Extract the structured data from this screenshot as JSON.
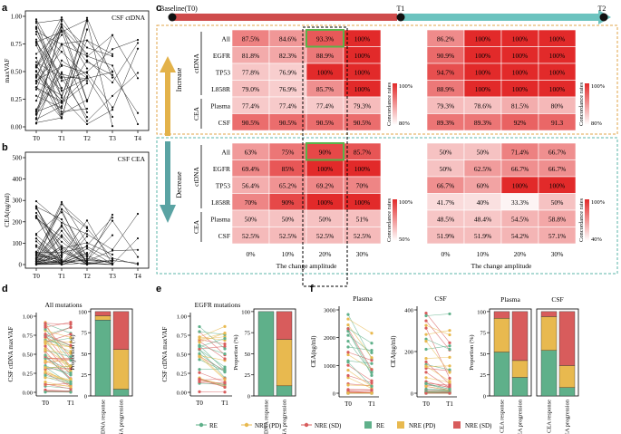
{
  "panel_letters": {
    "a": "a",
    "b": "b",
    "c": "c",
    "d": "d",
    "e": "e",
    "f": "f"
  },
  "panel_a": {
    "title": "CSF ctDNA",
    "ylabel": "maxVAF",
    "yticks": [
      "0.00",
      "0.25",
      "0.50",
      "0.75",
      "1.00"
    ],
    "xticks": [
      "T0",
      "T1",
      "T2",
      "T3",
      "T4"
    ]
  },
  "panel_b": {
    "title": "CSF CEA",
    "ylabel": "CEA(ng/ml)",
    "yticks": [
      "0",
      "100",
      "200",
      "300",
      "400",
      "500"
    ],
    "xticks": [
      "T0",
      "T1",
      "T2",
      "T3",
      "T4"
    ]
  },
  "timeline": {
    "baseline": "Baseline(T0)",
    "t1": "T1",
    "t2": "T2"
  },
  "row_labels": [
    "All",
    "EGFR",
    "TP53",
    "L858R",
    "Plasma",
    "CSF"
  ],
  "group_labels": {
    "ctdna": "ctDNA",
    "cea": "CEA"
  },
  "direction": {
    "increase": "Increase",
    "decrease": "Decrease"
  },
  "col_ticks": [
    "0%",
    "10%",
    "20%",
    "30%"
  ],
  "xlabel": "The change amplitude",
  "legend_title": "Concordance rates",
  "legend_ticks": {
    "inc_left": [
      "100%",
      "80%"
    ],
    "inc_right": [
      "100%",
      "80%"
    ],
    "dec_left": [
      "100%",
      "50%"
    ],
    "dec_right": [
      "100%",
      "40%"
    ]
  },
  "inc_left": [
    [
      "87.5%",
      "84.6%",
      "93.3%",
      "100%"
    ],
    [
      "81.8%",
      "82.3%",
      "88.9%",
      "100%"
    ],
    [
      "77.8%",
      "76.9%",
      "100%",
      "100%"
    ],
    [
      "79.0%",
      "76.9%",
      "85.7%",
      "100%"
    ],
    [
      "77.4%",
      "77.4%",
      "77.4%",
      "79.3%"
    ],
    [
      "90.5%",
      "90.5%",
      "90.5%",
      "90.5%"
    ]
  ],
  "inc_right": [
    [
      "86.2%",
      "100%",
      "100%",
      "100%"
    ],
    [
      "90.9%",
      "100%",
      "100%",
      "100%"
    ],
    [
      "94.7%",
      "100%",
      "100%",
      "100%"
    ],
    [
      "88.9%",
      "100%",
      "100%",
      "100%"
    ],
    [
      "79.3%",
      "78.6%",
      "81.5%",
      "80%"
    ],
    [
      "89.3%",
      "89.3%",
      "92%",
      "91.3"
    ]
  ],
  "dec_left": [
    [
      "63%",
      "75%",
      "90%",
      "85.7%"
    ],
    [
      "69.4%",
      "85%",
      "100%",
      "100%"
    ],
    [
      "56.4%",
      "65.2%",
      "69.2%",
      "70%"
    ],
    [
      "70%",
      "90%",
      "100%",
      "100%"
    ],
    [
      "50%",
      "50%",
      "50%",
      "51%"
    ],
    [
      "52.5%",
      "52.5%",
      "52.5%",
      "52.5%"
    ]
  ],
  "dec_right": [
    [
      "50%",
      "50%",
      "71.4%",
      "66.7%"
    ],
    [
      "50%",
      "62.5%",
      "66.7%",
      "66.7%"
    ],
    [
      "66.7%",
      "60%",
      "100%",
      "100%"
    ],
    [
      "41.7%",
      "40%",
      "33.3%",
      "50%"
    ],
    [
      "48.5%",
      "48.4%",
      "54.5%",
      "58.8%"
    ],
    [
      "51.9%",
      "51.9%",
      "54.2%",
      "57.1%"
    ]
  ],
  "panel_d": {
    "title": "All mutations",
    "ylabel": "CSF ctDNA maxVAF",
    "yticks": [
      "0.00",
      "0.25",
      "0.50",
      "0.75",
      "1.00"
    ],
    "xticks": [
      "T0",
      "T1"
    ]
  },
  "panel_e": {
    "title": "EGFR mutations",
    "ylabel": "CSF ctDNA maxVAF",
    "yticks": [
      "0.00",
      "0.25",
      "0.50",
      "0.75",
      "1.00"
    ],
    "xticks": [
      "T0",
      "T1"
    ]
  },
  "panel_f_plasma": {
    "title": "Plasma",
    "ylabel": "CEA(ng/ml)",
    "yticks": [
      "0",
      "1000",
      "2000",
      "3000"
    ],
    "xticks": [
      "T0",
      "T1"
    ]
  },
  "panel_f_csf": {
    "title": "CSF",
    "ylabel": "CEA(ng/ml)",
    "yticks": [
      "0",
      "200",
      "400"
    ],
    "xticks": [
      "T0",
      "T1"
    ]
  },
  "bars": {
    "ylabel": "Proportion (%)",
    "yticks": [
      "0",
      "25",
      "50",
      "75",
      "100"
    ],
    "d_cats": [
      "ctDNA response",
      "ctDNA progression"
    ],
    "e_cats": [
      "ctDNA response",
      "ctDNA progression"
    ],
    "f_titles": [
      "Plasma",
      "CSF"
    ],
    "f_cats": [
      "CEA response",
      "CEA progression"
    ],
    "d": [
      [
        90,
        5,
        5
      ],
      [
        8,
        47,
        45
      ]
    ],
    "e": [
      [
        100,
        0,
        0
      ],
      [
        12,
        55,
        33
      ]
    ],
    "f_plasma": [
      [
        52,
        40,
        8
      ],
      [
        22,
        20,
        58
      ]
    ],
    "f_csf": [
      [
        54,
        40,
        6
      ],
      [
        10,
        26,
        64
      ]
    ]
  },
  "bottom_legend": [
    "RE",
    "NRE (PD)",
    "NRE (SD)",
    "RE",
    "NRE (PD)",
    "NRE (SD)"
  ],
  "colors": {
    "re": "#5fb08a",
    "pd": "#e8b94f",
    "sd": "#d85c5c",
    "heat_hi": "#e22a2a",
    "heat_lo": "#ffffff",
    "arrow_up": "#e3b24a",
    "arrow_down": "#5aa3a3",
    "timeline_red": "#cf4c4c",
    "timeline_teal": "#6cc3bf",
    "box_orange": "#e2a44a",
    "box_teal": "#5bb5a8",
    "highlight": "#5ab34a"
  }
}
